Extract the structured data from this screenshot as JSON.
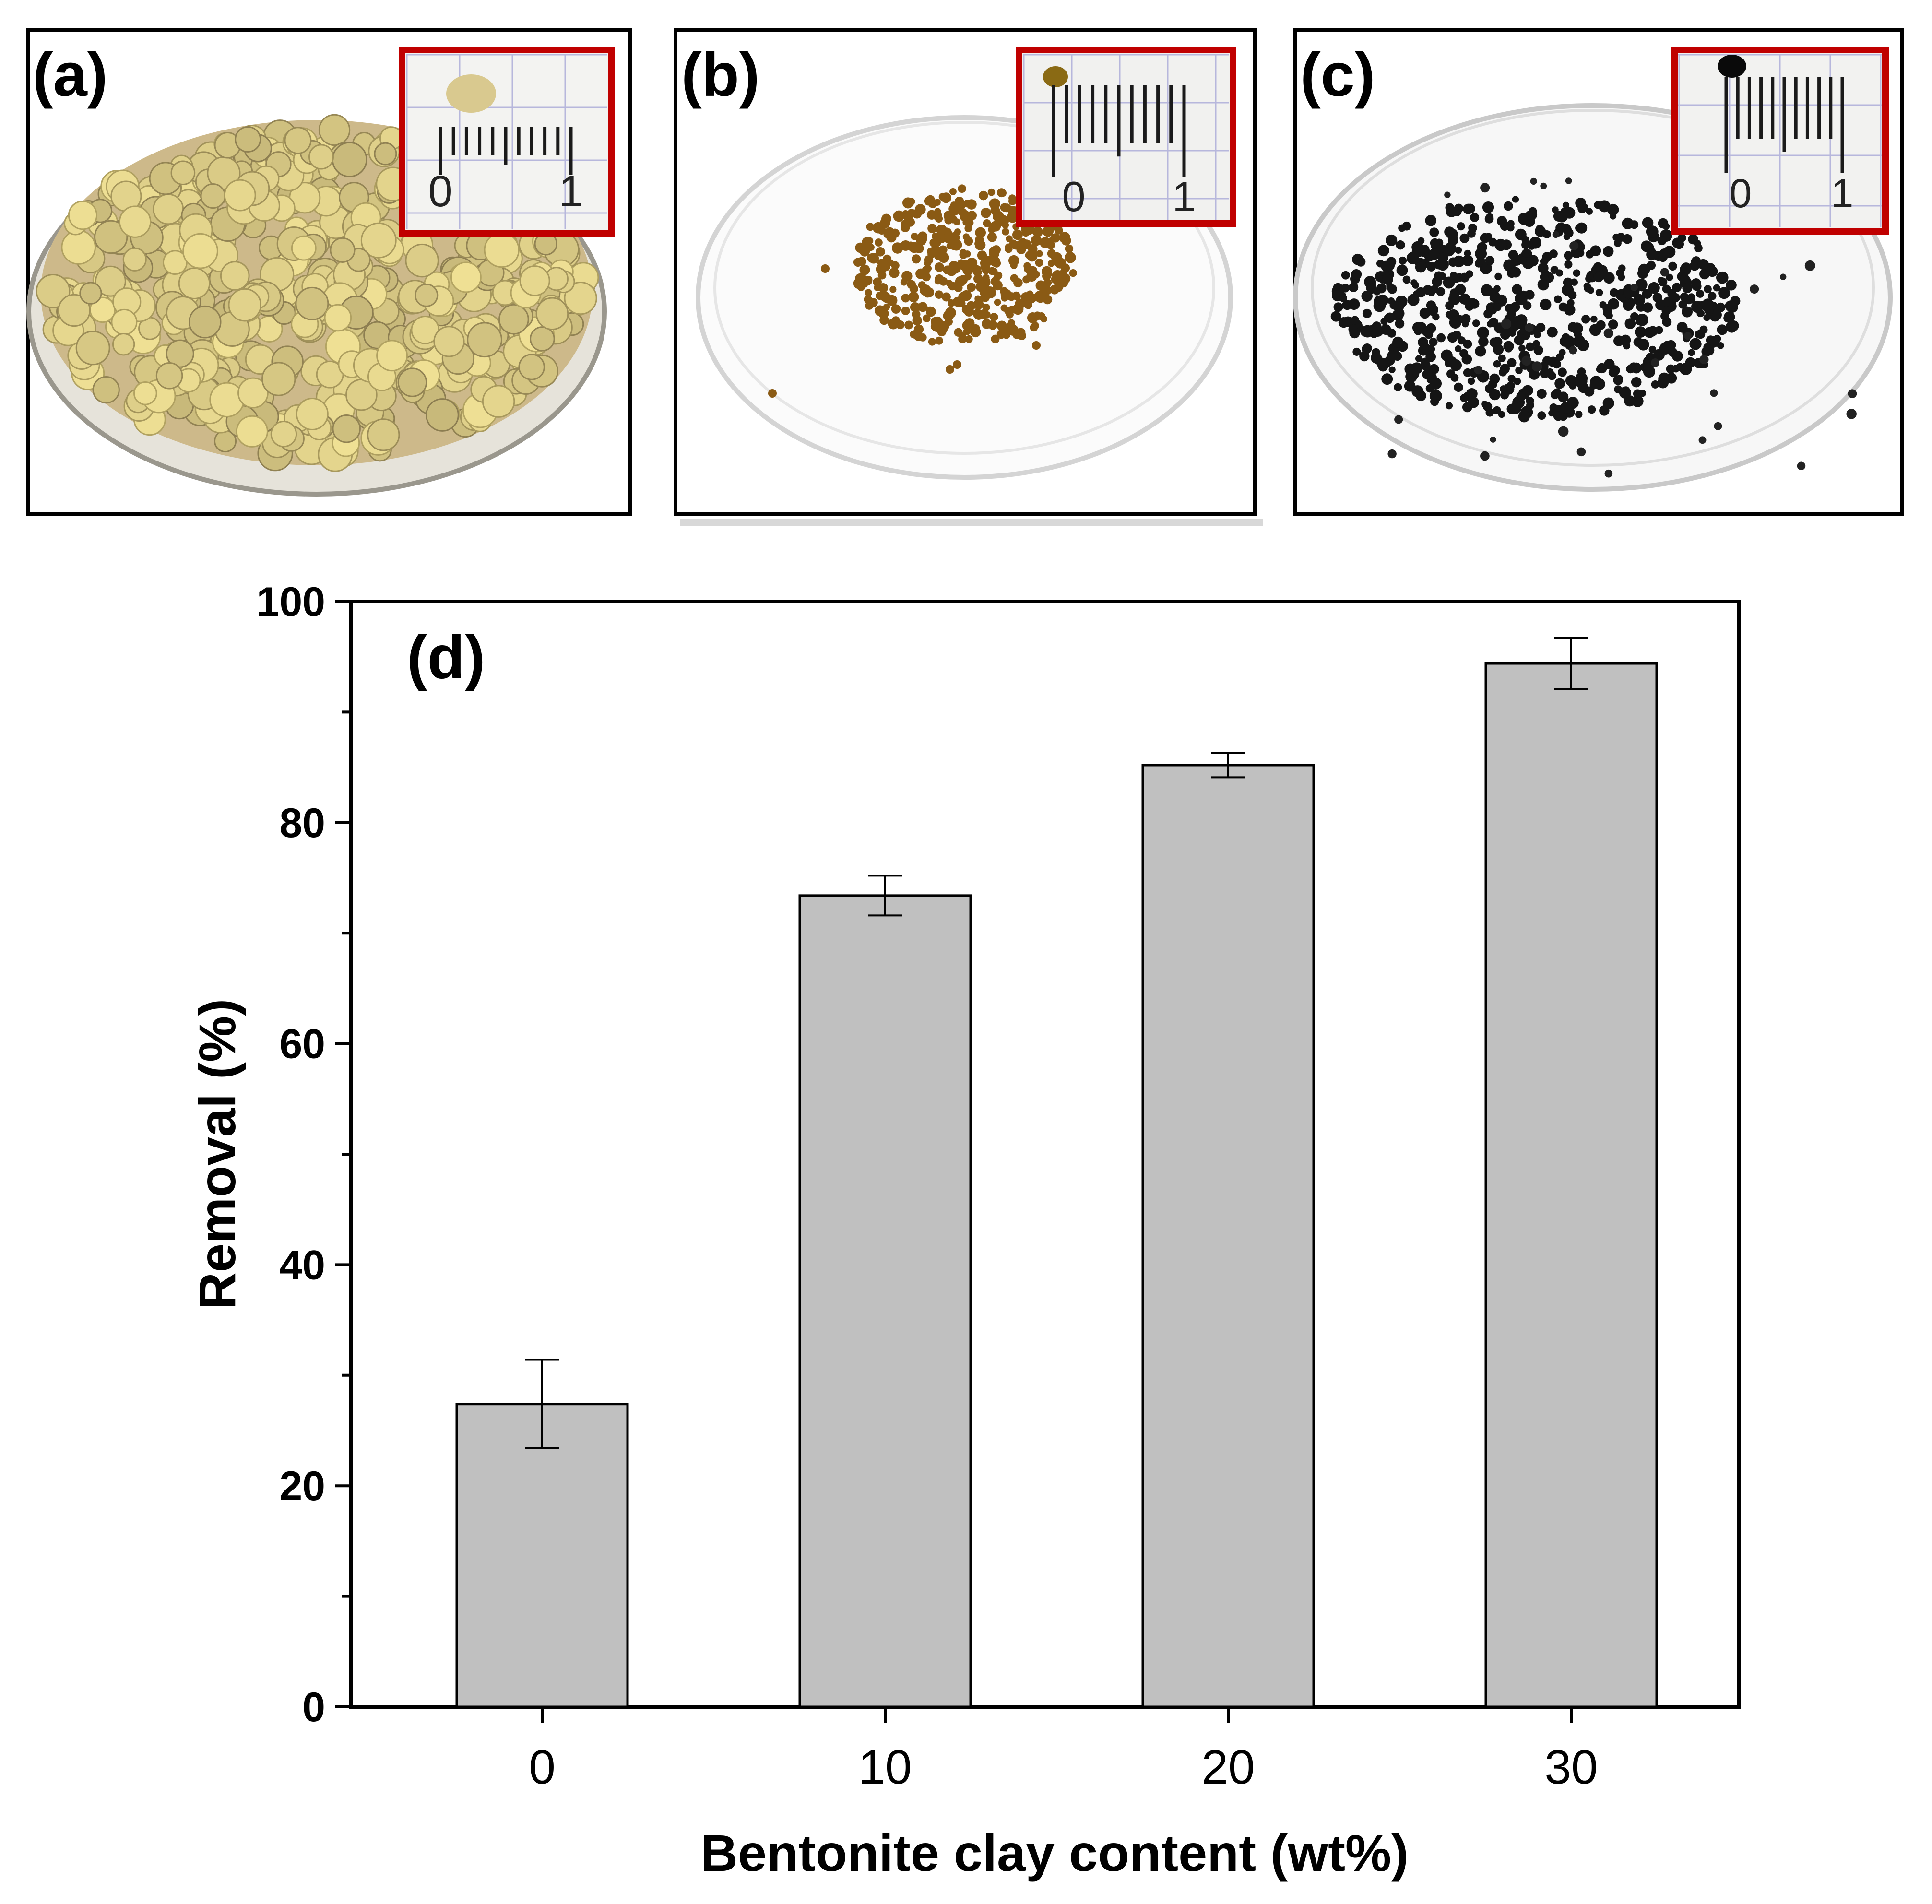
{
  "panels": {
    "a": {
      "label": "(a)",
      "scale_labels": [
        "0",
        "1"
      ]
    },
    "b": {
      "label": "(b)",
      "scale_labels": [
        "0",
        "1"
      ]
    },
    "c": {
      "label": "(c)",
      "scale_labels": [
        "0",
        "1"
      ]
    }
  },
  "colors": {
    "bar_fill": "#c0c0c0",
    "inset_border": "#c00000",
    "beads_a": "#cdb98a",
    "beads_b": "#8a5a14",
    "beads_c": "#151515"
  },
  "chart_data": {
    "type": "bar",
    "panel_label": "(d)",
    "categories": [
      "0",
      "10",
      "20",
      "30"
    ],
    "values": [
      27.4,
      73.4,
      85.2,
      94.4
    ],
    "errors": [
      4.0,
      1.8,
      1.1,
      2.3
    ],
    "xlabel": "Bentonite clay content (wt%)",
    "ylabel": "Removal (%)",
    "ylim": [
      0,
      100
    ],
    "yticks": [
      0,
      20,
      40,
      60,
      80,
      100
    ],
    "grid": false,
    "legend": "none"
  }
}
